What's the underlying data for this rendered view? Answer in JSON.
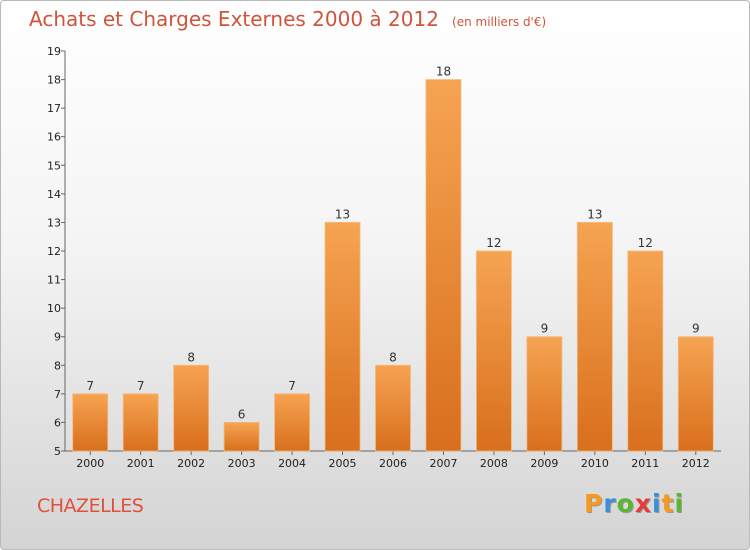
{
  "title": "Achats et Charges Externes 2000 à 2012",
  "unit_label": "(en milliers d'€)",
  "location": "CHAZELLES",
  "brand": {
    "letters": [
      "P",
      "r",
      "o",
      "x",
      "i",
      "t",
      "i"
    ],
    "colors": [
      "#f59a1c",
      "#3c8fd6",
      "#5cb531",
      "#e83c3c",
      "#3c8fd6",
      "#f59a1c",
      "#5cb531"
    ]
  },
  "colors": {
    "title": "#d0543a",
    "bar_light": "#f6a452",
    "bar_dark": "#d86f1c",
    "axis": "#666666"
  },
  "chart_data": {
    "type": "bar",
    "title": "Achats et Charges Externes 2000 à 2012",
    "xlabel": "",
    "ylabel": "",
    "categories": [
      "2000",
      "2001",
      "2002",
      "2003",
      "2004",
      "2005",
      "2006",
      "2007",
      "2008",
      "2009",
      "2010",
      "2011",
      "2012"
    ],
    "values": [
      7,
      7,
      8,
      6,
      7,
      13,
      8,
      18,
      12,
      9,
      13,
      12,
      9
    ],
    "ylim": [
      5,
      19
    ],
    "yticks": [
      5,
      6,
      7,
      8,
      9,
      10,
      11,
      12,
      13,
      14,
      15,
      16,
      17,
      18,
      19
    ],
    "grid": false,
    "data_labels": true
  }
}
